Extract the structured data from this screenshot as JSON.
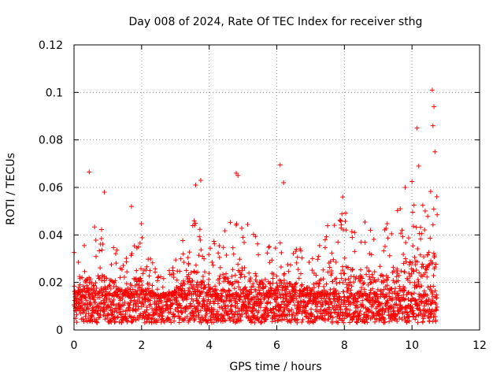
{
  "chart_data": {
    "type": "scatter",
    "title": "Day 008 of 2024, Rate Of TEC Index for receiver sthg",
    "xlabel": "GPS time / hours",
    "ylabel": "ROTI / TECUs",
    "xlim": [
      0,
      12
    ],
    "ylim": [
      0,
      0.12
    ],
    "x_ticks": [
      0,
      2,
      4,
      6,
      8,
      10,
      12
    ],
    "x_tick_labels": [
      "0",
      "2",
      "4",
      "6",
      "8",
      "10",
      "12"
    ],
    "y_ticks": [
      0,
      0.02,
      0.04,
      0.06,
      0.08,
      0.1,
      0.12
    ],
    "y_tick_labels": [
      "0",
      "0.02",
      "0.04",
      "0.06",
      "0.08",
      "0.1",
      "0.12"
    ],
    "grid": true,
    "marker": "+",
    "marker_color": "#ff0000",
    "series": [
      {
        "name": "ROTI",
        "notable_points": [
          {
            "x": 0.45,
            "y": 0.0665
          },
          {
            "x": 0.9,
            "y": 0.058
          },
          {
            "x": 1.7,
            "y": 0.052
          },
          {
            "x": 3.6,
            "y": 0.061
          },
          {
            "x": 3.75,
            "y": 0.063
          },
          {
            "x": 4.8,
            "y": 0.066
          },
          {
            "x": 4.85,
            "y": 0.065
          },
          {
            "x": 6.1,
            "y": 0.0695
          },
          {
            "x": 6.2,
            "y": 0.062
          },
          {
            "x": 7.95,
            "y": 0.056
          },
          {
            "x": 9.8,
            "y": 0.06
          },
          {
            "x": 10.0,
            "y": 0.0625
          },
          {
            "x": 10.15,
            "y": 0.085
          },
          {
            "x": 10.2,
            "y": 0.069
          },
          {
            "x": 10.6,
            "y": 0.101
          },
          {
            "x": 10.65,
            "y": 0.094
          },
          {
            "x": 10.62,
            "y": 0.086
          },
          {
            "x": 10.68,
            "y": 0.075
          }
        ],
        "envelope": [
          {
            "x": 0.0,
            "y_max": 0.039
          },
          {
            "x": 0.5,
            "y_max": 0.045
          },
          {
            "x": 1.0,
            "y_max": 0.042
          },
          {
            "x": 1.5,
            "y_max": 0.03
          },
          {
            "x": 2.0,
            "y_max": 0.045
          },
          {
            "x": 2.5,
            "y_max": 0.023
          },
          {
            "x": 3.0,
            "y_max": 0.03
          },
          {
            "x": 3.5,
            "y_max": 0.048
          },
          {
            "x": 4.0,
            "y_max": 0.037
          },
          {
            "x": 4.5,
            "y_max": 0.045
          },
          {
            "x": 5.0,
            "y_max": 0.05
          },
          {
            "x": 5.5,
            "y_max": 0.038
          },
          {
            "x": 6.0,
            "y_max": 0.04
          },
          {
            "x": 6.5,
            "y_max": 0.037
          },
          {
            "x": 7.0,
            "y_max": 0.033
          },
          {
            "x": 7.5,
            "y_max": 0.045
          },
          {
            "x": 8.0,
            "y_max": 0.05
          },
          {
            "x": 8.5,
            "y_max": 0.046
          },
          {
            "x": 9.0,
            "y_max": 0.045
          },
          {
            "x": 9.5,
            "y_max": 0.05
          },
          {
            "x": 10.0,
            "y_max": 0.055
          },
          {
            "x": 10.5,
            "y_max": 0.06
          },
          {
            "x": 10.75,
            "y_max": 0.06
          }
        ],
        "x_range": [
          0,
          10.75
        ],
        "baseline_band": [
          0.003,
          0.015
        ]
      }
    ]
  }
}
